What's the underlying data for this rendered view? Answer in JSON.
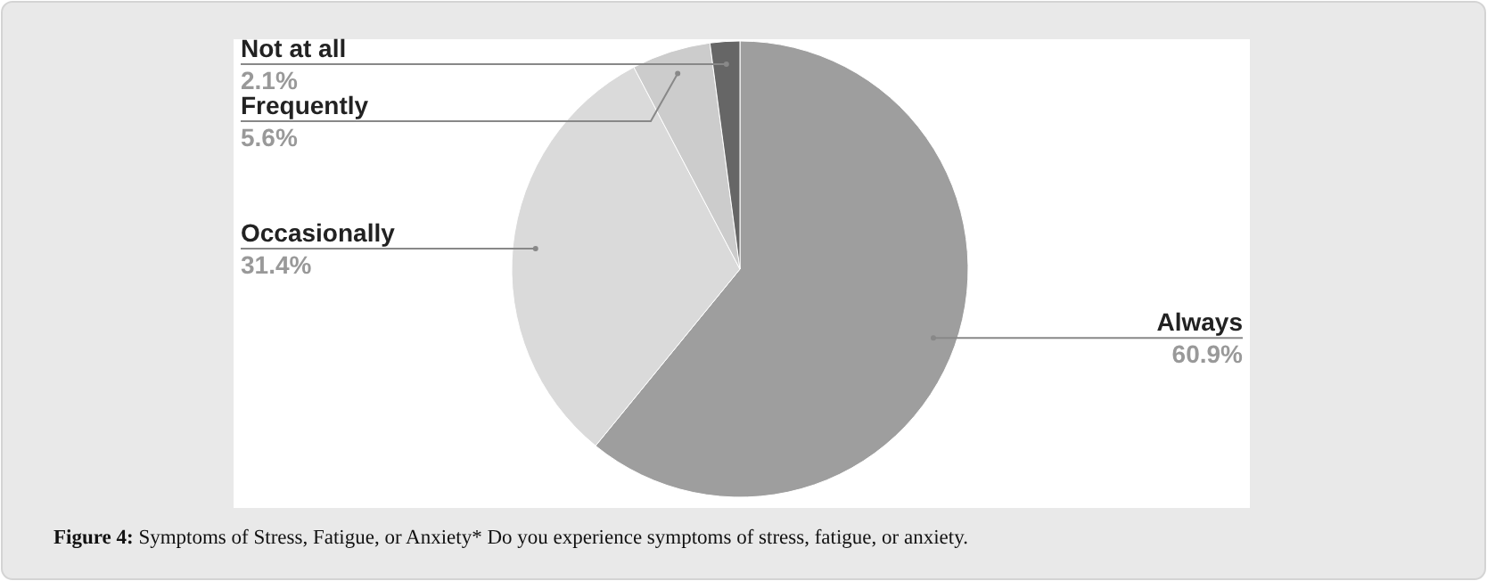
{
  "chart_data": {
    "type": "pie",
    "title": "Figure 4: Symptoms of Stress, Fatigue, or Anxiety* Do you experience symptoms of stress, fatigue, or anxiety.",
    "categories": [
      "Always",
      "Occasionally",
      "Frequently",
      "Not at all"
    ],
    "values": [
      60.9,
      31.4,
      5.6,
      2.1
    ],
    "colors": [
      "#9e9e9e",
      "#dadada",
      "#cccccc",
      "#666666"
    ],
    "value_labels": [
      "60.9%",
      "31.4%",
      "5.6%",
      "2.1%"
    ]
  }
}
